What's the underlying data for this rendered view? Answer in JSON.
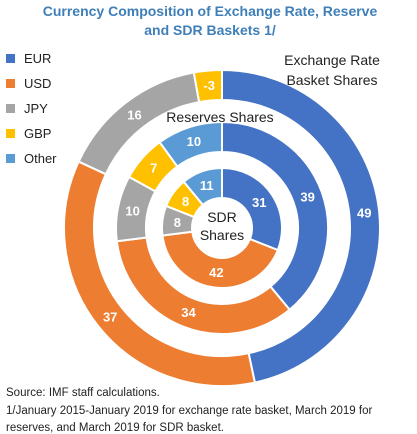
{
  "chart_data": {
    "type": "donut",
    "title": "Currency Composition of Exchange Rate, Reserve and SDR Baskets 1/",
    "categories": [
      "EUR",
      "USD",
      "JPY",
      "GBP",
      "Other"
    ],
    "colors": [
      "#4472c4",
      "#ed7d31",
      "#a5a5a5",
      "#ffc000",
      "#5b9bd5"
    ],
    "series": [
      {
        "name": "Exchange Rate Basket Shares",
        "values": [
          49,
          37,
          16,
          -3,
          null
        ]
      },
      {
        "name": "Reserves Shares",
        "values": [
          39,
          34,
          10,
          7,
          10
        ]
      },
      {
        "name": "SDR Shares",
        "values": [
          31,
          42,
          8,
          8,
          11
        ]
      }
    ],
    "source": "Source: IMF staff calculations.",
    "footnote": "1/January 2015-January 2019 for exchange rate basket, March 2019 for reserves, and March 2019 for SDR basket."
  }
}
